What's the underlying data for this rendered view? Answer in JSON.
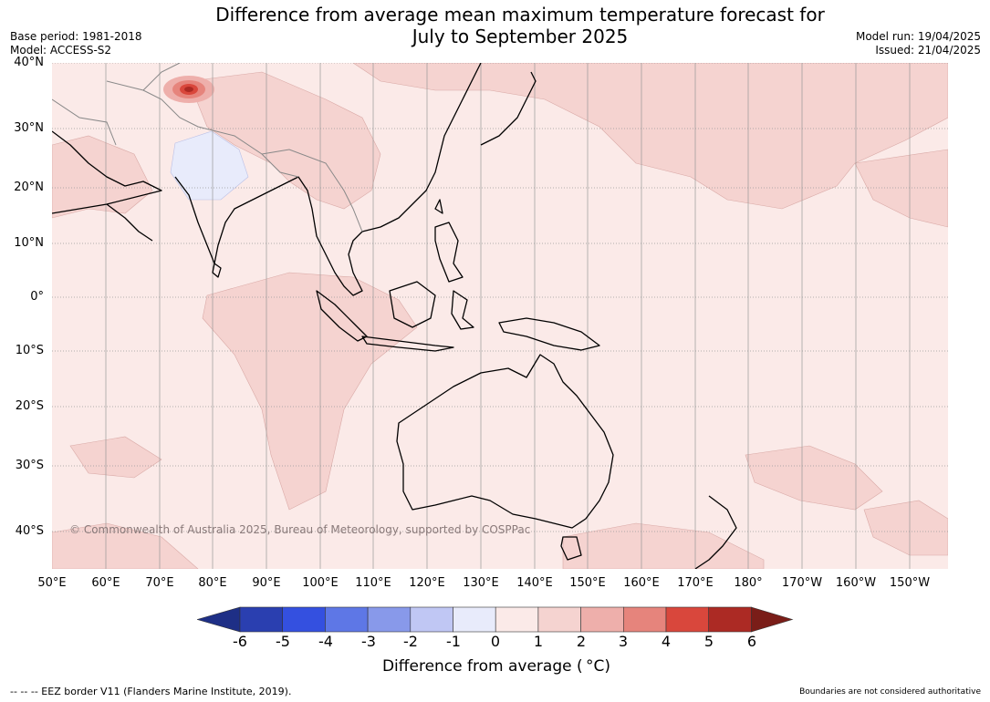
{
  "title": {
    "line1": "Difference from average mean maximum temperature forecast for",
    "line2": "July to September 2025"
  },
  "meta_left": {
    "base_period": "Base period: 1981-2018",
    "model": "Model: ACCESS-S2"
  },
  "meta_right": {
    "model_run": "Model run: 19/04/2025",
    "issued": "Issued: 21/04/2025"
  },
  "lat_labels": [
    "40°N",
    "30°N",
    "20°N",
    "10°N",
    "0°",
    "10°S",
    "20°S",
    "30°S",
    "40°S"
  ],
  "lon_labels": [
    "50°E",
    "60°E",
    "70°E",
    "80°E",
    "90°E",
    "100°E",
    "110°E",
    "120°E",
    "130°E",
    "140°E",
    "150°E",
    "160°E",
    "170°E",
    "180°",
    "170°W",
    "160°W",
    "150°W"
  ],
  "copyright": "© Commonwealth of Australia 2025, Bureau of Meteorology, supported by COSPPac",
  "legend": {
    "ticks": [
      "-6",
      "-5",
      "-4",
      "-3",
      "-2",
      "-1",
      "0",
      "1",
      "2",
      "3",
      "4",
      "5",
      "6"
    ],
    "colors": [
      "#1e2f86",
      "#2a3fb0",
      "#3450e0",
      "#5e77e6",
      "#8899ea",
      "#c0c7f4",
      "#e8ebfb",
      "#fbeae8",
      "#f5d3d0",
      "#eeafab",
      "#e6847c",
      "#d9473c",
      "#ac2a24",
      "#7a1d18"
    ],
    "title": "Difference from average ( °C)"
  },
  "footer": {
    "left": "--  --  -- EEZ border V11 (Flanders Marine Institute, 2019).",
    "right": "Boundaries are not considered authoritative"
  }
}
